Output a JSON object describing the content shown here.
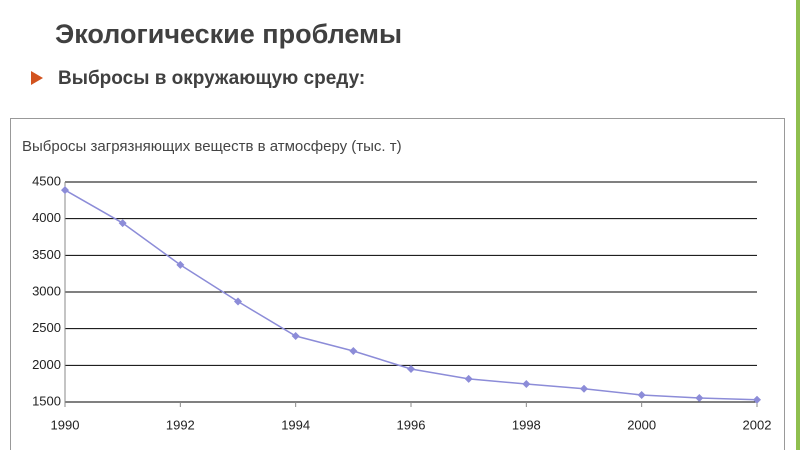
{
  "slide": {
    "title": "Экологические проблемы",
    "bullet": "Выбросы в окружающую среду:"
  },
  "chart_data": {
    "type": "line",
    "title": "Выбросы загрязняющих веществ в атмосферу (тыс. т)",
    "x": [
      1990,
      1991,
      1992,
      1993,
      1994,
      1995,
      1996,
      1997,
      1998,
      1999,
      2000,
      2001,
      2002
    ],
    "series": [
      {
        "name": "Выбросы",
        "color": "#8c8cd8",
        "values": [
          4390,
          3940,
          3370,
          2870,
          2400,
          2195,
          1950,
          1815,
          1745,
          1680,
          1595,
          1555,
          1530
        ]
      }
    ],
    "xlim": [
      1990,
      2002
    ],
    "xticks": [
      1990,
      1992,
      1994,
      1996,
      1998,
      2000,
      2002
    ],
    "ylim": [
      1500,
      4500
    ],
    "yticks": [
      1500,
      2000,
      2500,
      3000,
      3500,
      4000,
      4500
    ],
    "grid": true,
    "legend": false
  }
}
